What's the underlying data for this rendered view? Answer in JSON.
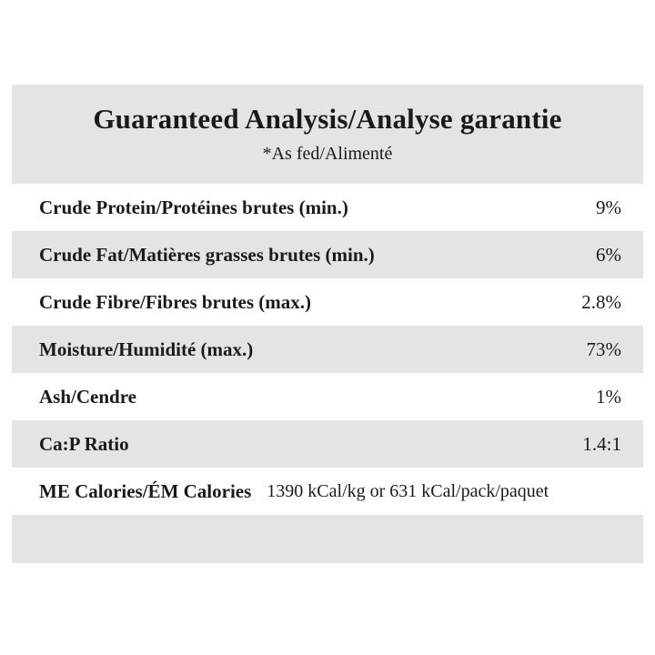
{
  "table": {
    "title": "Guaranteed Analysis/Analyse garantie",
    "subtitle": "*As fed/Alimenté",
    "rows": [
      {
        "label": "Crude Protein/Protéines brutes (min.)",
        "value": "9%"
      },
      {
        "label": "Crude Fat/Matières grasses brutes (min.)",
        "value": "6%"
      },
      {
        "label": "Crude Fibre/Fibres brutes (max.)",
        "value": "2.8%"
      },
      {
        "label": "Moisture/Humidité (max.)",
        "value": "73%"
      },
      {
        "label": "Ash/Cendre",
        "value": "1%"
      },
      {
        "label": "Ca:P Ratio",
        "value": "1.4:1"
      },
      {
        "label": "ME Calories/ÉM Calories",
        "value": "1390 kCal/kg or 631 kCal/pack/paquet"
      }
    ],
    "colors": {
      "band_gray": "#e5e4e2",
      "text": "#1a1a1a",
      "background": "#ffffff"
    }
  }
}
